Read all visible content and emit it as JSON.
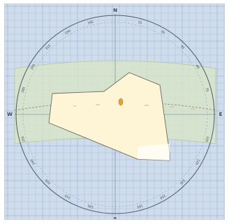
{
  "viewer": {
    "compass": {
      "north": "N",
      "east": "E",
      "south": "S",
      "west": "W"
    },
    "ring_labels": [
      "345",
      "330",
      "315",
      "300",
      "285",
      "255",
      "240",
      "225",
      "210",
      "195",
      "165",
      "150",
      "135",
      "120",
      "105",
      "75",
      "60",
      "45",
      "30",
      "15"
    ],
    "colors": {
      "background": "#cfdcec",
      "grid": "#9fb6d6",
      "gridMajor": "#8aa6cc",
      "band": "#d8e6c6",
      "bandEdge": "#b5c99a",
      "ring": "#4e5a6e",
      "building": "#fdf5d6",
      "buildingEdge": "#6e6a60",
      "marker": "#e2a23a"
    }
  }
}
